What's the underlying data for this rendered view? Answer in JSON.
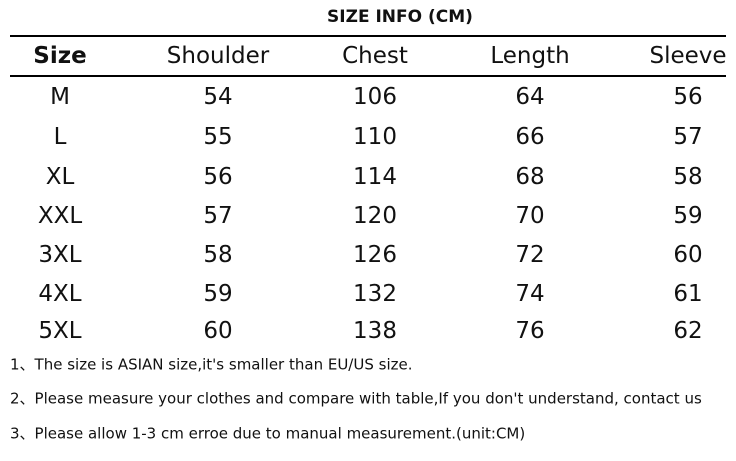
{
  "title": "SIZE INFO (CM)",
  "table": {
    "header": [
      "Size",
      "Shoulder",
      "Chest",
      "Length",
      "Sleeve"
    ],
    "rows": [
      [
        "M",
        54,
        106,
        64,
        56
      ],
      [
        "L",
        55,
        110,
        66,
        57
      ],
      [
        "XL",
        56,
        114,
        68,
        58
      ],
      [
        "XXL",
        57,
        120,
        70,
        59
      ],
      [
        "3XL",
        58,
        126,
        72,
        60
      ],
      [
        "4XL",
        59,
        132,
        74,
        61
      ],
      [
        "5XL",
        60,
        138,
        76,
        62
      ]
    ]
  },
  "notes": [
    "1、The size is ASIAN size,it's smaller than EU/US size.",
    "2、Please measure your clothes and compare with table,If you don't understand, contact us",
    "3、Please allow 1-3 cm erroe due to manual measurement.(unit:CM)"
  ]
}
